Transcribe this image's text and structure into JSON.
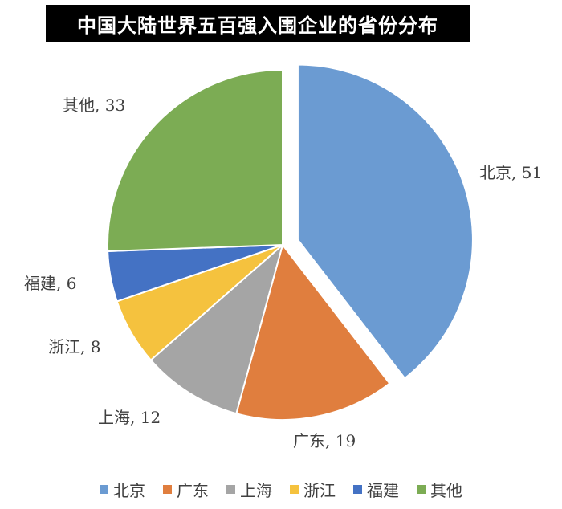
{
  "chart_data": {
    "type": "pie",
    "title": "中国大陆世界五百强入围企业的省份分布",
    "categories": [
      "北京",
      "广东",
      "上海",
      "浙江",
      "福建",
      "其他"
    ],
    "values": [
      51,
      19,
      12,
      8,
      6,
      33
    ],
    "data_labels": [
      "北京, 51",
      "广东, 19",
      "上海, 12",
      "浙江, 8",
      "福建, 6",
      "其他, 33"
    ],
    "colors": [
      "#6b9bd2",
      "#e07e3e",
      "#a5a5a5",
      "#f5c23e",
      "#4472c4",
      "#7cac54"
    ],
    "exploded": [
      "北京"
    ],
    "legend": "bottom"
  }
}
